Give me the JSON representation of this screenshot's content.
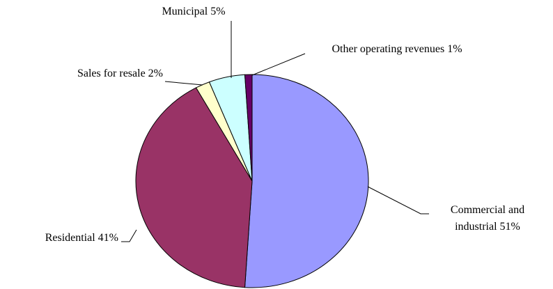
{
  "chart_data": {
    "type": "pie",
    "categories": [
      "Commercial and industrial",
      "Residential",
      "Sales for resale",
      "Municipal",
      "Other operating revenues"
    ],
    "values": [
      51,
      41,
      2,
      5,
      1
    ],
    "value_labels": [
      "51%",
      "41%",
      "2%",
      "5%",
      "1%"
    ],
    "colors": [
      "#9999ff",
      "#993366",
      "#ffffcc",
      "#ccffff",
      "#660066"
    ]
  }
}
